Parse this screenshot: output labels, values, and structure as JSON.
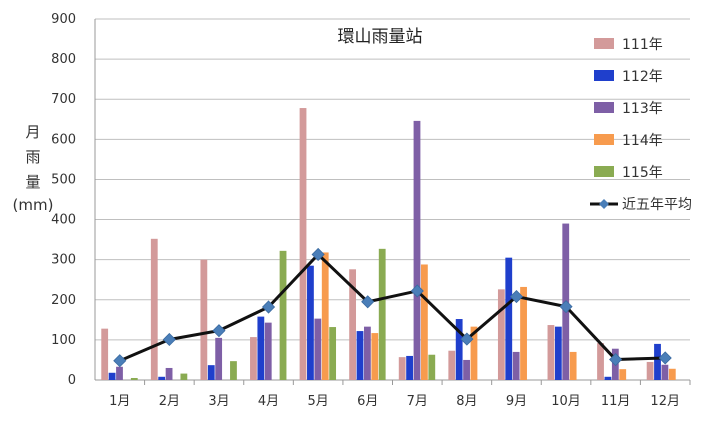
{
  "chart_data": {
    "type": "bar",
    "title": "環山雨量站",
    "ylabel": [
      "月",
      "雨",
      "量",
      "(mm)"
    ],
    "categories": [
      "1月",
      "2月",
      "3月",
      "4月",
      "5月",
      "6月",
      "7月",
      "8月",
      "9月",
      "10月",
      "11月",
      "12月"
    ],
    "yticks": [
      "0",
      "100",
      "200",
      "300",
      "400",
      "500",
      "600",
      "700",
      "800",
      "900"
    ],
    "ylim": [
      0,
      900
    ],
    "grid": true,
    "legend_position": "right",
    "series": [
      {
        "name": "111年",
        "color": "#d39a9a",
        "values": [
          128,
          352,
          300,
          107,
          678,
          276,
          57,
          73,
          226,
          137,
          92,
          45
        ]
      },
      {
        "name": "112年",
        "color": "#1f3fcc",
        "values": [
          18,
          8,
          37,
          158,
          285,
          122,
          60,
          152,
          305,
          133,
          8,
          90
        ]
      },
      {
        "name": "113年",
        "color": "#7e5fa6",
        "values": [
          33,
          30,
          105,
          143,
          153,
          133,
          646,
          50,
          70,
          390,
          78,
          38
        ]
      },
      {
        "name": "114年",
        "color": "#f79b4e",
        "values": [
          0,
          0,
          0,
          0,
          318,
          117,
          288,
          133,
          232,
          70,
          27,
          28
        ]
      },
      {
        "name": "115年",
        "color": "#8aab52",
        "values": [
          5,
          16,
          47,
          322,
          132,
          327,
          63,
          0,
          0,
          0,
          0,
          0
        ]
      }
    ],
    "line": {
      "name": "近五年平均",
      "color": "#111111",
      "marker_color": "#4a7eb8",
      "values": [
        48,
        101,
        123,
        182,
        313,
        195,
        222,
        102,
        208,
        183,
        51,
        55
      ]
    }
  }
}
